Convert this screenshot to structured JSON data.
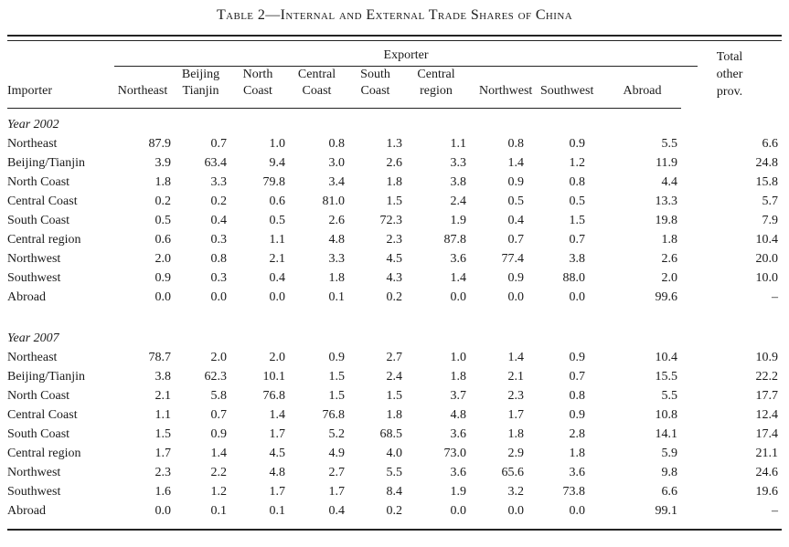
{
  "title": "Table 2—Internal and External Trade Shares of China",
  "colors": {
    "text": "#1a1a1a",
    "rule": "#232323",
    "background": "#ffffff"
  },
  "header": {
    "exporter_group_label": "Exporter",
    "importer_label": "Importer",
    "exporter_columns": [
      [
        "Northeast"
      ],
      [
        "Beijing",
        "Tianjin"
      ],
      [
        "North",
        "Coast"
      ],
      [
        "Central",
        "Coast"
      ],
      [
        "South",
        "Coast"
      ],
      [
        "Central",
        "region"
      ],
      [
        "Northwest"
      ],
      [
        "Southwest"
      ],
      [
        "Abroad"
      ]
    ],
    "total_column_lines": [
      "Total",
      "other",
      "prov."
    ]
  },
  "sections": [
    {
      "label": "Year 2002",
      "rows": [
        {
          "importer": "Northeast",
          "values": [
            "87.9",
            "0.7",
            "1.0",
            "0.8",
            "1.3",
            "1.1",
            "0.8",
            "0.9",
            "5.5",
            "6.6"
          ]
        },
        {
          "importer": "Beijing/Tianjin",
          "values": [
            "3.9",
            "63.4",
            "9.4",
            "3.0",
            "2.6",
            "3.3",
            "1.4",
            "1.2",
            "11.9",
            "24.8"
          ]
        },
        {
          "importer": "North Coast",
          "values": [
            "1.8",
            "3.3",
            "79.8",
            "3.4",
            "1.8",
            "3.8",
            "0.9",
            "0.8",
            "4.4",
            "15.8"
          ]
        },
        {
          "importer": "Central Coast",
          "values": [
            "0.2",
            "0.2",
            "0.6",
            "81.0",
            "1.5",
            "2.4",
            "0.5",
            "0.5",
            "13.3",
            "5.7"
          ]
        },
        {
          "importer": "South Coast",
          "values": [
            "0.5",
            "0.4",
            "0.5",
            "2.6",
            "72.3",
            "1.9",
            "0.4",
            "1.5",
            "19.8",
            "7.9"
          ]
        },
        {
          "importer": "Central region",
          "values": [
            "0.6",
            "0.3",
            "1.1",
            "4.8",
            "2.3",
            "87.8",
            "0.7",
            "0.7",
            "1.8",
            "10.4"
          ]
        },
        {
          "importer": "Northwest",
          "values": [
            "2.0",
            "0.8",
            "2.1",
            "3.3",
            "4.5",
            "3.6",
            "77.4",
            "3.8",
            "2.6",
            "20.0"
          ]
        },
        {
          "importer": "Southwest",
          "values": [
            "0.9",
            "0.3",
            "0.4",
            "1.8",
            "4.3",
            "1.4",
            "0.9",
            "88.0",
            "2.0",
            "10.0"
          ]
        },
        {
          "importer": "Abroad",
          "values": [
            "0.0",
            "0.0",
            "0.0",
            "0.1",
            "0.2",
            "0.0",
            "0.0",
            "0.0",
            "99.6",
            "–"
          ]
        }
      ]
    },
    {
      "label": "Year 2007",
      "rows": [
        {
          "importer": "Northeast",
          "values": [
            "78.7",
            "2.0",
            "2.0",
            "0.9",
            "2.7",
            "1.0",
            "1.4",
            "0.9",
            "10.4",
            "10.9"
          ]
        },
        {
          "importer": "Beijing/Tianjin",
          "values": [
            "3.8",
            "62.3",
            "10.1",
            "1.5",
            "2.4",
            "1.8",
            "2.1",
            "0.7",
            "15.5",
            "22.2"
          ]
        },
        {
          "importer": "North Coast",
          "values": [
            "2.1",
            "5.8",
            "76.8",
            "1.5",
            "1.5",
            "3.7",
            "2.3",
            "0.8",
            "5.5",
            "17.7"
          ]
        },
        {
          "importer": "Central Coast",
          "values": [
            "1.1",
            "0.7",
            "1.4",
            "76.8",
            "1.8",
            "4.8",
            "1.7",
            "0.9",
            "10.8",
            "12.4"
          ]
        },
        {
          "importer": "South Coast",
          "values": [
            "1.5",
            "0.9",
            "1.7",
            "5.2",
            "68.5",
            "3.6",
            "1.8",
            "2.8",
            "14.1",
            "17.4"
          ]
        },
        {
          "importer": "Central region",
          "values": [
            "1.7",
            "1.4",
            "4.5",
            "4.9",
            "4.0",
            "73.0",
            "2.9",
            "1.8",
            "5.9",
            "21.1"
          ]
        },
        {
          "importer": "Northwest",
          "values": [
            "2.3",
            "2.2",
            "4.8",
            "2.7",
            "5.5",
            "3.6",
            "65.6",
            "3.6",
            "9.8",
            "24.6"
          ]
        },
        {
          "importer": "Southwest",
          "values": [
            "1.6",
            "1.2",
            "1.7",
            "1.7",
            "8.4",
            "1.9",
            "3.2",
            "73.8",
            "6.6",
            "19.6"
          ]
        },
        {
          "importer": "Abroad",
          "values": [
            "0.0",
            "0.1",
            "0.1",
            "0.4",
            "0.2",
            "0.0",
            "0.0",
            "0.0",
            "99.1",
            "–"
          ]
        }
      ]
    }
  ]
}
